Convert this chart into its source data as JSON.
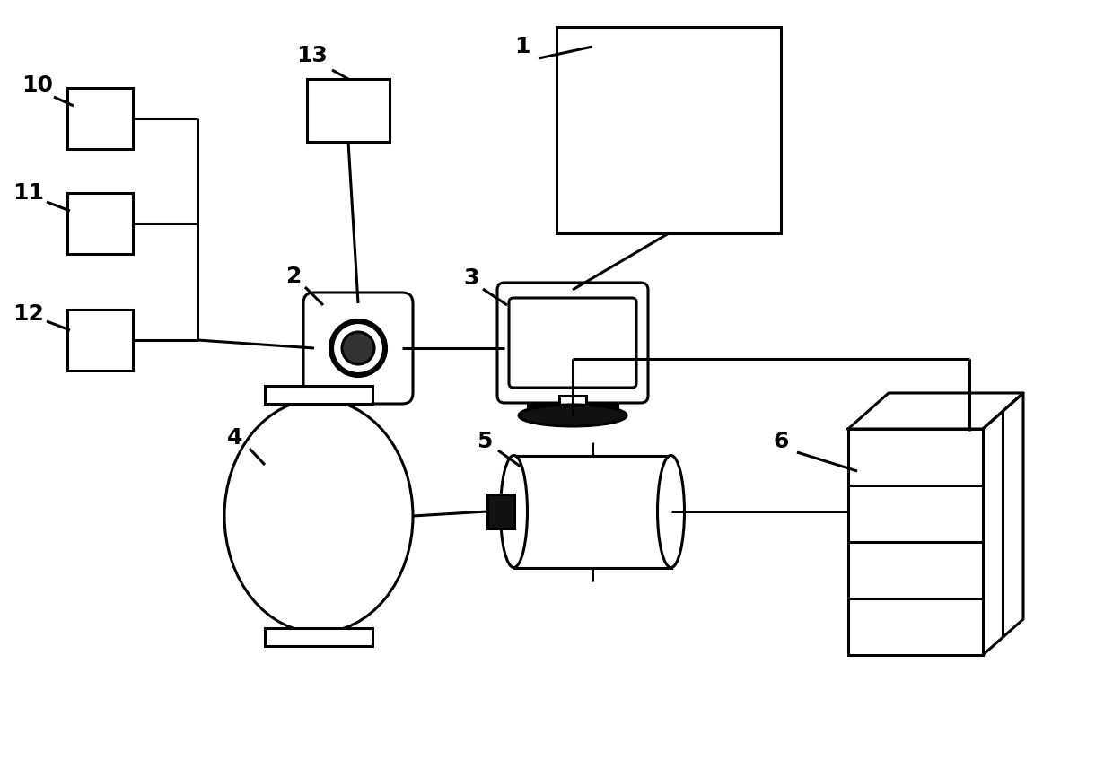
{
  "bg_color": "#ffffff",
  "line_color": "#000000",
  "label_color": "#000000",
  "figsize": [
    12.4,
    8.47
  ],
  "dpi": 100,
  "lw": 2.2
}
